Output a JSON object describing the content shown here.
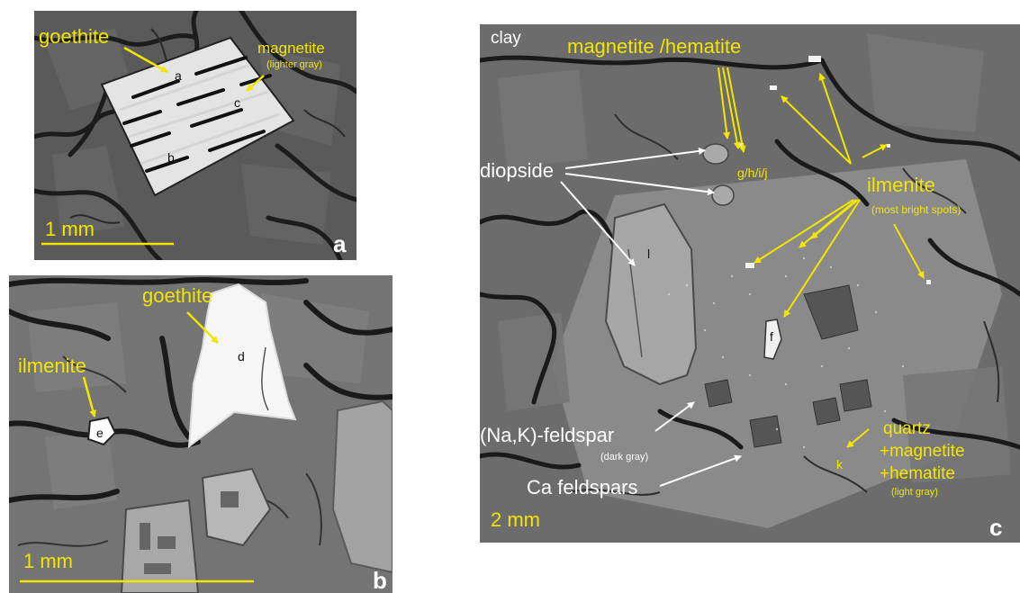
{
  "panel_a": {
    "letter": "a",
    "scale_label": "1 mm",
    "labels": {
      "goethite": "goethite",
      "magnetite": "magnetite",
      "magnetite_note": "(lighter gray)",
      "pt_a": "a",
      "pt_b": "b",
      "pt_c": "c"
    }
  },
  "panel_b": {
    "letter": "b",
    "scale_label": "1 mm",
    "labels": {
      "goethite": "goethite",
      "ilmenite": "ilmenite",
      "pt_d": "d",
      "pt_e": "e"
    }
  },
  "panel_c": {
    "letter": "c",
    "scale_label": "2 mm",
    "labels": {
      "clay": "clay",
      "magnetite_hematite": "magnetite /hematite",
      "ghij": "g/h/i/j",
      "diopside": "diopside",
      "ilmenite": "ilmenite",
      "ilmenite_note": "(most bright spots)",
      "na_k_feldspar": "(Na,K)-feldspar",
      "dark_gray": "(dark gray)",
      "ca_feldspars": "Ca feldspars",
      "quartz": "quartz",
      "plus_magnetite": "+magnetite",
      "plus_hematite": "+hematite",
      "light_gray": "(light gray)",
      "pt_f": "f",
      "pt_k": "k",
      "pt_l": "l"
    }
  },
  "colors": {
    "annotation_yellow": "#f2e600",
    "annotation_white": "#ffffff",
    "matrix_gray": "#6e6e6e",
    "crack_dark": "#1e1e1e"
  }
}
